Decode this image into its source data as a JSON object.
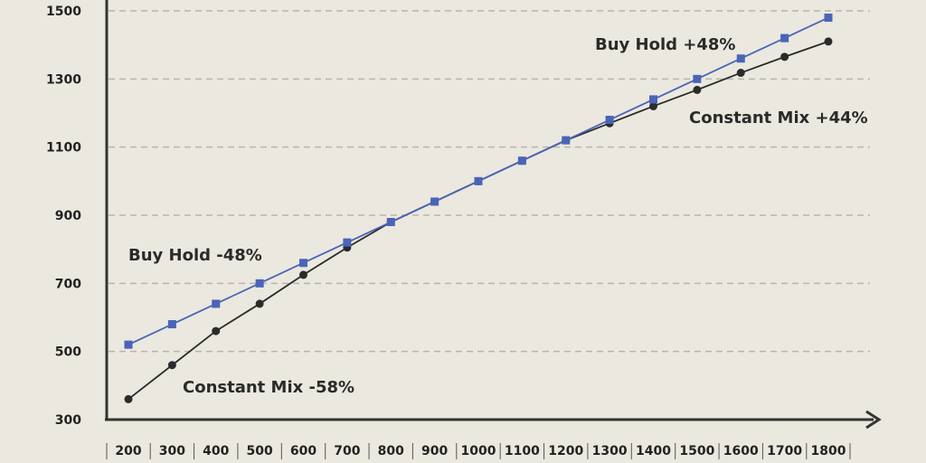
{
  "chart_data": {
    "type": "line",
    "x": [
      200,
      300,
      400,
      500,
      600,
      700,
      800,
      900,
      1000,
      1100,
      1200,
      1300,
      1400,
      1500,
      1600,
      1700,
      1800
    ],
    "x_tick_labels": [
      "200",
      "300",
      "400",
      "500",
      "600",
      "700",
      "800",
      "900",
      "1000",
      "1100",
      "1200",
      "1300",
      "1400",
      "1500",
      "1600",
      "1700",
      "1800"
    ],
    "y_tick_labels": [
      "300",
      "500",
      "700",
      "900",
      "1100",
      "1300",
      "1500"
    ],
    "y_ticks": [
      300,
      500,
      700,
      900,
      1100,
      1300,
      1500
    ],
    "ylim": [
      300,
      1500
    ],
    "grid": "horizontal dashed",
    "colors": {
      "series_1": "#4a64b8",
      "series_2": "#2b2b2b",
      "axis": "#333333",
      "grid": "#b8b5ab",
      "background": "#ebe8df"
    },
    "series": [
      {
        "values": [
          520,
          580,
          640,
          700,
          760,
          820,
          880,
          940,
          1000,
          1060,
          1120,
          1180,
          1240,
          1300,
          1360,
          1420,
          1480
        ],
        "marker": "square"
      },
      {
        "values": [
          360,
          460,
          560,
          640,
          725,
          805,
          880,
          940,
          1000,
          1060,
          1120,
          1170,
          1220,
          1268,
          1318,
          1365,
          1410
        ],
        "marker": "circle"
      }
    ],
    "annotations": [
      {
        "text": "Buy Hold +48%"
      },
      {
        "text": "Constant Mix +44%"
      },
      {
        "text": "Buy Hold -48%"
      },
      {
        "text": "Constant Mix -58%"
      }
    ]
  }
}
